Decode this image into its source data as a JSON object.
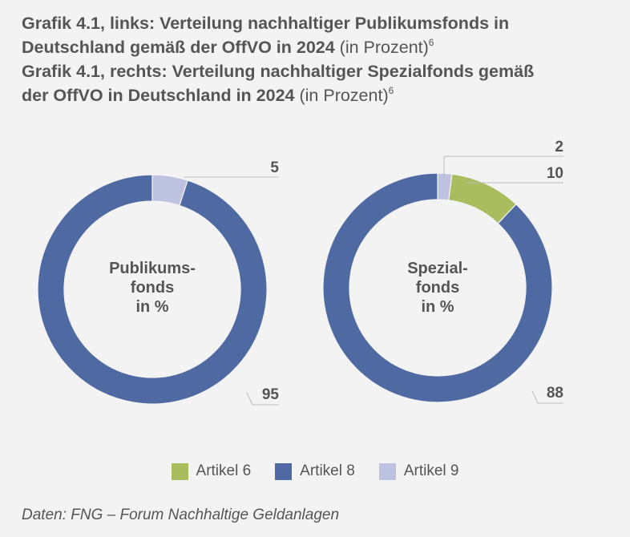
{
  "title_lines": [
    {
      "bold": "Grafik 4.1, links: Verteilung nachhaltiger Publikumsfonds in",
      "unit": "",
      "sup": ""
    },
    {
      "bold": "Deutschland gemäß der OffVO in 2024",
      "unit": "(in Prozent)",
      "sup": "6"
    },
    {
      "bold": "Grafik 4.1, rechts: Verteilung nachhaltiger Spezialfonds gemäß",
      "unit": "",
      "sup": ""
    },
    {
      "bold": "der OffVO in Deutschland in 2024",
      "unit": "(in Prozent)",
      "sup": "6"
    }
  ],
  "chart_data": [
    {
      "type": "pie",
      "donut": true,
      "center_label": [
        "Publikums-",
        "fonds",
        "in %"
      ],
      "slices": [
        {
          "category": "Artikel 9",
          "value": 5
        },
        {
          "category": "Artikel 8",
          "value": 95
        }
      ]
    },
    {
      "type": "pie",
      "donut": true,
      "center_label": [
        "Spezial-",
        "fonds",
        "in %"
      ],
      "slices": [
        {
          "category": "Artikel 9",
          "value": 2
        },
        {
          "category": "Artikel 6",
          "value": 10
        },
        {
          "category": "Artikel 8",
          "value": 88
        }
      ]
    }
  ],
  "legend": [
    {
      "label": "Artikel 6",
      "color": "#a9bd5e"
    },
    {
      "label": "Artikel 8",
      "color": "#4f6aa2"
    },
    {
      "label": "Artikel 9",
      "color": "#bcc2df"
    }
  ],
  "source": "Daten: FNG – Forum Nachhaltige Geldanlagen"
}
